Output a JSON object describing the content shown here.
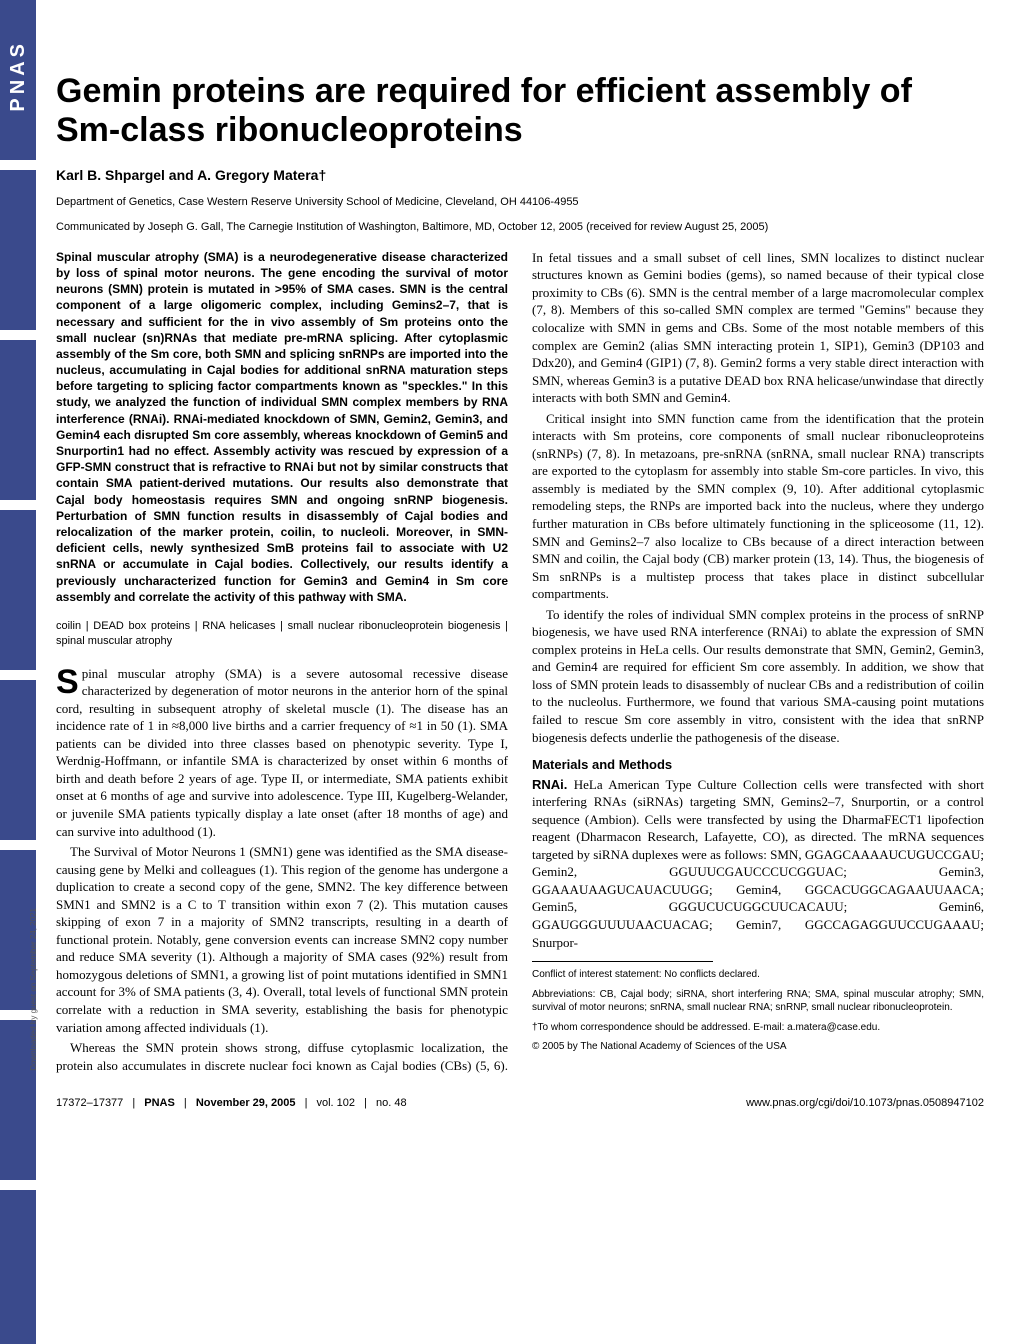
{
  "sidebar": {
    "logo_text": "PNAS",
    "download_note": "Downloaded by guest on September 24, 2021"
  },
  "header": {
    "title": "Gemin proteins are required for efficient assembly of Sm-class ribonucleoproteins",
    "authors": "Karl B. Shpargel and A. Gregory Matera†",
    "affiliation": "Department of Genetics, Case Western Reserve University School of Medicine, Cleveland, OH 44106-4955",
    "communicated": "Communicated by Joseph G. Gall, The Carnegie Institution of Washington, Baltimore, MD, October 12, 2005 (received for review August 25, 2005)"
  },
  "abstract": "Spinal muscular atrophy (SMA) is a neurodegenerative disease characterized by loss of spinal motor neurons. The gene encoding the survival of motor neurons (SMN) protein is mutated in >95% of SMA cases. SMN is the central component of a large oligomeric complex, including Gemins2–7, that is necessary and sufficient for the in vivo assembly of Sm proteins onto the small nuclear (sn)RNAs that mediate pre-mRNA splicing. After cytoplasmic assembly of the Sm core, both SMN and splicing snRNPs are imported into the nucleus, accumulating in Cajal bodies for additional snRNA maturation steps before targeting to splicing factor compartments known as \"speckles.\" In this study, we analyzed the function of individual SMN complex members by RNA interference (RNAi). RNAi-mediated knockdown of SMN, Gemin2, Gemin3, and Gemin4 each disrupted Sm core assembly, whereas knockdown of Gemin5 and Snurportin1 had no effect. Assembly activity was rescued by expression of a GFP-SMN construct that is refractive to RNAi but not by similar constructs that contain SMA patient-derived mutations. Our results also demonstrate that Cajal body homeostasis requires SMN and ongoing snRNP biogenesis. Perturbation of SMN function results in disassembly of Cajal bodies and relocalization of the marker protein, coilin, to nucleoli. Moreover, in SMN-deficient cells, newly synthesized SmB proteins fail to associate with U2 snRNA or accumulate in Cajal bodies. Collectively, our results identify a previously uncharacterized function for Gemin3 and Gemin4 in Sm core assembly and correlate the activity of this pathway with SMA.",
  "keywords": "coilin | DEAD box proteins | RNA helicases | small nuclear ribonucleoprotein biogenesis | spinal muscular atrophy",
  "body": {
    "p1_dropcap": "S",
    "p1": "pinal muscular atrophy (SMA) is a severe autosomal recessive disease characterized by degeneration of motor neurons in the anterior horn of the spinal cord, resulting in subsequent atrophy of skeletal muscle (1). The disease has an incidence rate of 1 in ≈8,000 live births and a carrier frequency of ≈1 in 50 (1). SMA patients can be divided into three classes based on phenotypic severity. Type I, Werdnig-Hoffmann, or infantile SMA is characterized by onset within 6 months of birth and death before 2 years of age. Type II, or intermediate, SMA patients exhibit onset at 6 months of age and survive into adolescence. Type III, Kugelberg-Welander, or juvenile SMA patients typically display a late onset (after 18 months of age) and can survive into adulthood (1).",
    "p2": "The Survival of Motor Neurons 1 (SMN1) gene was identified as the SMA disease-causing gene by Melki and colleagues (1). This region of the genome has undergone a duplication to create a second copy of the gene, SMN2. The key difference between SMN1 and SMN2 is a C to T transition within exon 7 (2). This mutation causes skipping of exon 7 in a majority of SMN2 transcripts, resulting in a dearth of functional protein. Notably, gene conversion events can increase SMN2 copy number and reduce SMA severity (1). Although a majority of SMA cases (92%) result from homozygous deletions of SMN1, a growing list of point mutations identified in SMN1 account for 3% of SMA patients (3, 4). Overall, total levels of functional SMN protein correlate with a reduction in SMA severity, establishing the basis for phenotypic variation among affected individuals (1).",
    "p3": "Whereas the SMN protein shows strong, diffuse cytoplasmic localization, the protein also accumulates in discrete nuclear foci known as Cajal bodies (CBs) (5, 6). In fetal tissues and a small subset of cell lines, SMN localizes to distinct nuclear structures known as Gemini bodies (gems), so named because of their typical close proximity to CBs (6). SMN is the central member of a large macromolecular complex (7, 8). Members of this so-called SMN complex are termed \"Gemins\" because they colocalize with SMN in gems and CBs. Some of the most notable members of this complex are Gemin2 (alias SMN interacting protein 1, SIP1), Gemin3 (DP103 and Ddx20), and Gemin4 (GIP1) (7, 8). Gemin2 forms a very stable direct interaction with SMN, whereas Gemin3 is a putative DEAD box RNA helicase/unwindase that directly interacts with both SMN and Gemin4.",
    "p4": "Critical insight into SMN function came from the identification that the protein interacts with Sm proteins, core components of small nuclear ribonucleoproteins (snRNPs) (7, 8). In metazoans, pre-snRNA (snRNA, small nuclear RNA) transcripts are exported to the cytoplasm for assembly into stable Sm-core particles. In vivo, this assembly is mediated by the SMN complex (9, 10). After additional cytoplasmic remodeling steps, the RNPs are imported back into the nucleus, where they undergo further maturation in CBs before ultimately functioning in the spliceosome (11, 12). SMN and Gemins2–7 also localize to CBs because of a direct interaction between SMN and coilin, the Cajal body (CB) marker protein (13, 14). Thus, the biogenesis of Sm snRNPs is a multistep process that takes place in distinct subcellular compartments.",
    "p5": "To identify the roles of individual SMN complex proteins in the process of snRNP biogenesis, we have used RNA interference (RNAi) to ablate the expression of SMN complex proteins in HeLa cells. Our results demonstrate that SMN, Gemin2, Gemin3, and Gemin4 are required for efficient Sm core assembly. In addition, we show that loss of SMN protein leads to disassembly of nuclear CBs and a redistribution of coilin to the nucleolus. Furthermore, we found that various SMA-causing point mutations failed to rescue Sm core assembly in vitro, consistent with the idea that snRNP biogenesis defects underlie the pathogenesis of the disease.",
    "methods_head": "Materials and Methods",
    "rnai_label": "RNAi.",
    "p6": " HeLa American Type Culture Collection cells were transfected with short interfering RNAs (siRNAs) targeting SMN, Gemins2–7, Snurportin, or a control sequence (Ambion). Cells were transfected by using the DharmaFECT1 lipofection reagent (Dharmacon Research, Lafayette, CO), as directed. The mRNA sequences targeted by siRNA duplexes were as follows: SMN, GGAGCAAAAUCUGUCCGAU; Gemin2, GGUUUCGAUCCCUCGGUAC; Gemin3, GGAAAUAAGUCAUACUUGG; Gemin4, GGCACUGGCAGAAUUAACA; Gemin5, GGGUCUCUGGCUUCACAUU; Gemin6, GGAUGGGUUUUAACUACAG; Gemin7, GGCCAGAGGUUCCUGAAAU; Snurpor-"
  },
  "footnotes": {
    "conflict": "Conflict of interest statement: No conflicts declared.",
    "abbrev": "Abbreviations: CB, Cajal body; siRNA, short interfering RNA; SMA, spinal muscular atrophy; SMN, survival of motor neurons; snRNA, small nuclear RNA; snRNP, small nuclear ribonucleoprotein.",
    "corr": "†To whom correspondence should be addressed. E-mail: a.matera@case.edu.",
    "copyright": "© 2005 by The National Academy of Sciences of the USA"
  },
  "footer": {
    "pages": "17372–17377",
    "journal": "PNAS",
    "date": "November 29, 2005",
    "vol": "vol. 102",
    "issue": "no. 48",
    "url": "www.pnas.org/cgi/doi/10.1073/pnas.0508947102"
  }
}
